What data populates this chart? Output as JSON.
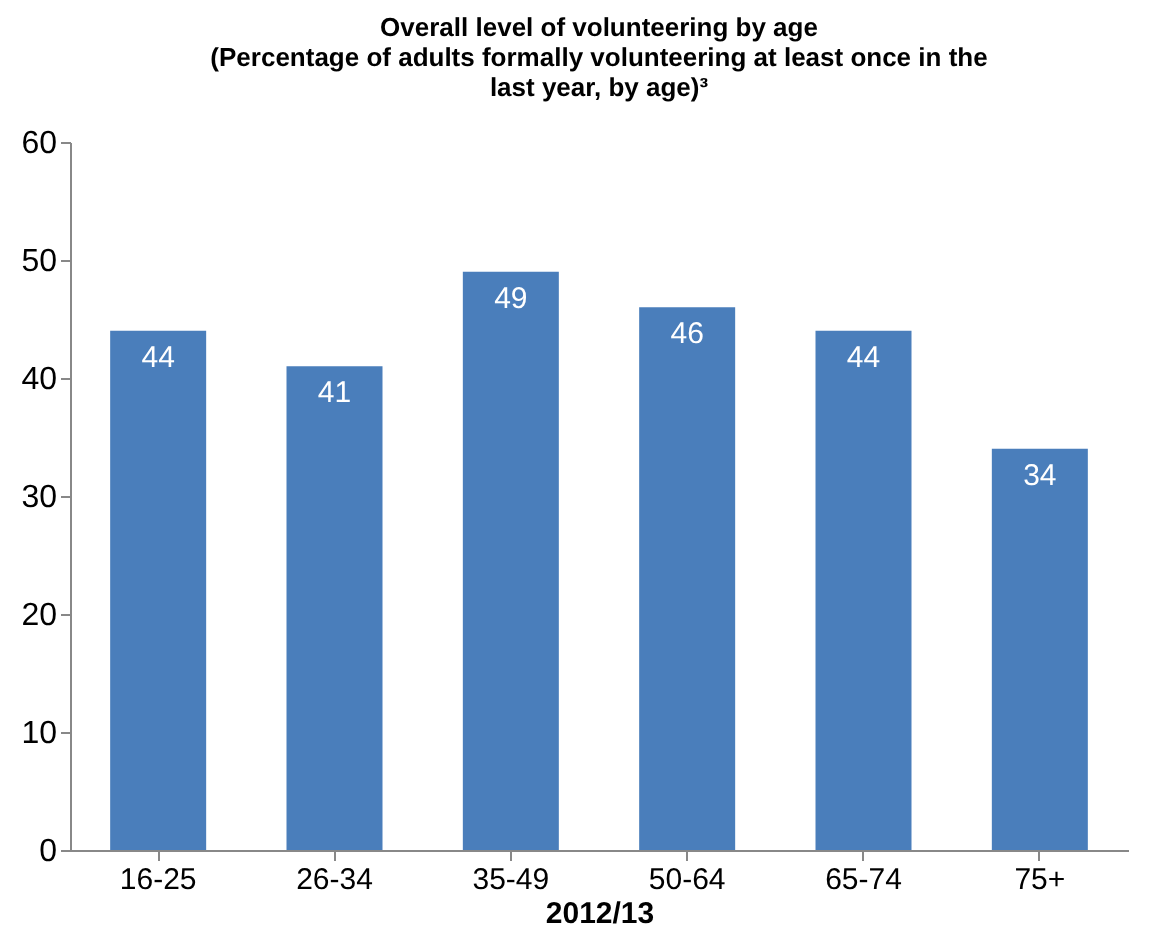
{
  "chart_data": {
    "type": "bar",
    "title": [
      "Overall level of volunteering by age",
      "(Percentage of adults formally  volunteering at least once in the",
      "last year, by age)³"
    ],
    "xlabel": "2012/13",
    "categories": [
      "16-25",
      "26-34",
      "35-49",
      "50-64",
      "65-74",
      "75+"
    ],
    "values": [
      44,
      41,
      49,
      46,
      44,
      34
    ],
    "color": "#4a7ebb",
    "ylim": [
      0,
      60
    ],
    "yticks": [
      0,
      10,
      20,
      30,
      40,
      50,
      60
    ],
    "grid": false,
    "data_labels": true
  }
}
